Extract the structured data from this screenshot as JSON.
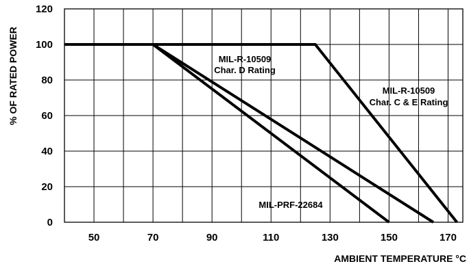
{
  "chart_data": {
    "type": "line",
    "xlabel": "AMBIENT TEMPERATURE °C",
    "ylabel": "% OF RATED POWER",
    "xlim": [
      40,
      175
    ],
    "ylim": [
      0,
      120
    ],
    "x_ticks": [
      50,
      70,
      90,
      110,
      130,
      150,
      170
    ],
    "y_ticks": [
      0,
      20,
      40,
      60,
      80,
      100,
      120
    ],
    "grid": true,
    "series": [
      {
        "name": "MIL-R-10509 Char. C & E Rating",
        "x": [
          40,
          125,
          173
        ],
        "y": [
          100,
          100,
          0
        ]
      },
      {
        "name": "MIL-R-10509 Char. D Rating",
        "x": [
          40,
          70,
          165
        ],
        "y": [
          100,
          100,
          0
        ]
      },
      {
        "name": "MIL-PRF-22684",
        "x": [
          40,
          70,
          150
        ],
        "y": [
          100,
          100,
          0
        ]
      }
    ],
    "annotations": [
      {
        "id": "d",
        "lines": [
          "MIL-R-10509",
          "Char. D Rating"
        ]
      },
      {
        "id": "ce",
        "lines": [
          "MIL-R-10509",
          "Char. C & E Rating"
        ]
      },
      {
        "id": "prf",
        "lines": [
          "MIL-PRF-22684"
        ]
      }
    ]
  }
}
